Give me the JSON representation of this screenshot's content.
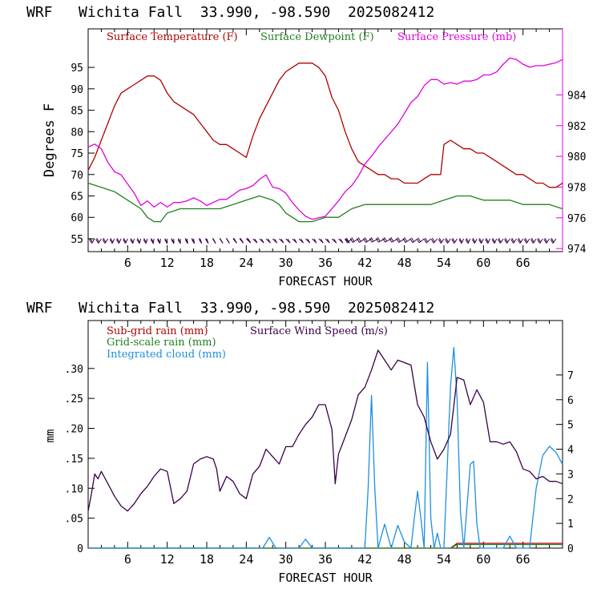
{
  "colors": {
    "temperature": "#b00000",
    "dewpoint": "#208020",
    "pressure": "#e000e0",
    "subgrid_rain": "#b00000",
    "grid_rain": "#208020",
    "cloud": "#1e8fe0",
    "wind": "#3a0048",
    "barbs": "#3a0048",
    "axis": "#000000"
  },
  "chart_data": [
    {
      "type": "line",
      "title": "WRF   Wichita Fall  33.990, -98.590  2025082412",
      "xlabel": "FORECAST HOUR",
      "ylabel": "Degrees F",
      "xlim": [
        0,
        72
      ],
      "ylim": [
        52,
        104
      ],
      "y2lim": [
        973.8,
        988.3
      ],
      "xticks": [
        6,
        12,
        18,
        24,
        30,
        36,
        42,
        48,
        54,
        60,
        66
      ],
      "yticks": [
        55,
        60,
        65,
        70,
        75,
        80,
        85,
        90,
        95
      ],
      "y2ticks": [
        974,
        976,
        978,
        980,
        982,
        984
      ],
      "legend": [
        "Surface Temperature (F)",
        "Surface Dewpoint (F)",
        "Surface Pressure (mb)"
      ],
      "series": [
        {
          "name": "Surface Temperature (F)",
          "axis": "left",
          "x": [
            0,
            1,
            2,
            3,
            4,
            5,
            6,
            7,
            8,
            9,
            10,
            11,
            12,
            13,
            14,
            15,
            16,
            17,
            18,
            19,
            20,
            21,
            22,
            23,
            24,
            25,
            26,
            27,
            28,
            29,
            30,
            31,
            32,
            33,
            34,
            35,
            36,
            37,
            38,
            39,
            40,
            41,
            42,
            43,
            44,
            45,
            46,
            47,
            48,
            49,
            50,
            51,
            52,
            53,
            53.5,
            54,
            55,
            56,
            57,
            58,
            59,
            60,
            61,
            62,
            63,
            64,
            65,
            66,
            67,
            68,
            69,
            70,
            71,
            72
          ],
          "y": [
            71,
            74,
            78,
            82,
            86,
            89,
            90,
            91,
            92,
            93,
            93,
            92,
            89,
            87,
            86,
            85,
            84,
            82,
            80,
            78,
            77,
            77,
            76,
            75,
            74,
            79,
            83,
            86,
            89,
            92,
            94,
            95,
            96,
            96,
            96,
            95,
            93,
            88,
            85,
            80,
            76,
            73,
            72,
            71,
            70,
            70,
            69,
            69,
            68,
            68,
            68,
            69,
            70,
            70,
            70,
            77,
            78,
            77,
            76,
            76,
            75,
            75,
            74,
            73,
            72,
            71,
            70,
            70,
            69,
            68,
            68,
            67,
            67,
            68
          ]
        },
        {
          "name": "Surface Dewpoint (F)",
          "axis": "left",
          "x": [
            0,
            2,
            4,
            6,
            8,
            9,
            10,
            11,
            12,
            14,
            16,
            18,
            20,
            22,
            24,
            26,
            28,
            29,
            30,
            32,
            34,
            36,
            38,
            40,
            42,
            44,
            46,
            48,
            50,
            52,
            54,
            56,
            58,
            60,
            62,
            64,
            66,
            68,
            70,
            72
          ],
          "y": [
            68,
            67,
            66,
            64,
            62,
            60,
            59,
            59,
            61,
            62,
            62,
            62,
            62,
            63,
            64,
            65,
            64,
            63,
            61,
            59,
            59,
            60,
            60,
            62,
            63,
            63,
            63,
            63,
            63,
            63,
            64,
            65,
            65,
            64,
            64,
            64,
            63,
            63,
            63,
            62
          ]
        },
        {
          "name": "Surface Pressure (mb)",
          "axis": "right",
          "x": [
            0,
            1,
            2,
            3,
            4,
            5,
            6,
            7,
            8,
            9,
            10,
            11,
            12,
            13,
            14,
            15,
            16,
            17,
            18,
            19,
            20,
            21,
            22,
            23,
            24,
            25,
            26,
            27,
            28,
            29,
            30,
            31,
            32,
            33,
            34,
            35,
            36,
            37,
            38,
            39,
            40,
            41,
            42,
            43,
            44,
            45,
            46,
            47,
            48,
            49,
            50,
            51,
            52,
            53,
            54,
            55,
            56,
            57,
            58,
            59,
            60,
            61,
            62,
            63,
            64,
            65,
            66,
            67,
            68,
            69,
            70,
            71,
            72
          ],
          "y": [
            980.6,
            980.8,
            980.5,
            979.6,
            979.0,
            978.8,
            978.2,
            977.6,
            976.8,
            977.1,
            976.7,
            977.0,
            976.7,
            977.0,
            977.0,
            977.1,
            977.3,
            977.1,
            976.8,
            977.0,
            977.2,
            977.2,
            977.5,
            977.8,
            977.9,
            978.1,
            978.5,
            978.8,
            978.0,
            977.9,
            977.6,
            977.0,
            976.5,
            976.1,
            975.9,
            976.0,
            976.1,
            976.6,
            977.1,
            977.7,
            978.1,
            978.7,
            979.5,
            980.0,
            980.6,
            981.1,
            981.6,
            982.1,
            982.8,
            983.5,
            983.9,
            984.6,
            985.0,
            985.0,
            984.7,
            984.8,
            984.7,
            984.9,
            984.9,
            985.0,
            985.3,
            985.3,
            985.5,
            986.0,
            986.4,
            986.3,
            986.0,
            985.8,
            985.9,
            985.9,
            986.0,
            986.1,
            986.3
          ]
        }
      ],
      "wind_barbs": {
        "y": 55,
        "x": [
          1,
          2,
          3,
          4,
          5,
          6,
          7,
          8,
          9,
          10,
          11,
          12,
          13,
          14,
          15,
          16,
          17,
          18,
          19,
          20,
          21,
          22,
          23,
          24,
          25,
          26,
          27,
          28,
          29,
          30,
          31,
          32,
          33,
          34,
          35,
          36,
          37,
          38,
          39,
          40,
          41,
          42,
          43,
          44,
          45,
          46,
          47,
          48,
          49,
          50,
          51,
          52,
          53,
          54,
          55,
          56,
          57,
          58,
          59,
          60,
          61,
          62,
          63,
          64,
          65,
          66,
          67,
          68,
          69,
          70,
          71
        ],
        "direction_deg": [
          200,
          200,
          200,
          195,
          195,
          195,
          190,
          190,
          190,
          185,
          185,
          180,
          180,
          180,
          175,
          175,
          170,
          170,
          165,
          160,
          160,
          155,
          155,
          150,
          150,
          150,
          150,
          150,
          150,
          150,
          150,
          150,
          150,
          150,
          150,
          150,
          150,
          150,
          150,
          210,
          220,
          220,
          220,
          225,
          225,
          225,
          225,
          220,
          220,
          215,
          215,
          210,
          205,
          200,
          200,
          200,
          195,
          195,
          195,
          195,
          195,
          195,
          200,
          200,
          200,
          200,
          200,
          200,
          200,
          200,
          200
        ],
        "barb_count": [
          2,
          2,
          2,
          2,
          2,
          2,
          2,
          2,
          2,
          2,
          2,
          2,
          2,
          2,
          2,
          2,
          2,
          2,
          2,
          2,
          2,
          2,
          2,
          2,
          1,
          1,
          1,
          1,
          1,
          1,
          1,
          1,
          1,
          1,
          1,
          1,
          1,
          1,
          1,
          2,
          2,
          2,
          2,
          2,
          2,
          2,
          2,
          2,
          2,
          2,
          2,
          2,
          2,
          2,
          2,
          2,
          2,
          2,
          2,
          2,
          2,
          2,
          2,
          2,
          2,
          2,
          2,
          2,
          2,
          2,
          2
        ]
      }
    },
    {
      "type": "line",
      "title": "WRF   Wichita Fall  33.990, -98.590  2025082412",
      "xlabel": "FORECAST HOUR",
      "ylabel": "mm",
      "xlim": [
        0,
        72
      ],
      "ylim": [
        0,
        0.38
      ],
      "y2lim": [
        0,
        9.2
      ],
      "xticks": [
        6,
        12,
        18,
        24,
        30,
        36,
        42,
        48,
        54,
        60,
        66
      ],
      "yticks": [
        0,
        0.05,
        0.1,
        0.15,
        0.2,
        0.25,
        0.3
      ],
      "ytick_labels": [
        "0",
        ".05",
        ".10",
        ".15",
        ".20",
        ".25",
        ".30"
      ],
      "y2ticks": [
        0,
        1,
        2,
        3,
        4,
        5,
        6,
        7
      ],
      "legend": [
        "Sub-grid rain (mm)",
        "Grid-scale rain (mm)",
        "Integrated cloud (mm)",
        "Surface Wind Speed (m/s)"
      ],
      "series": [
        {
          "name": "Sub-grid rain (mm)",
          "axis": "left",
          "x": [
            0,
            55,
            56,
            72
          ],
          "y": [
            0,
            0,
            0.008,
            0.008
          ]
        },
        {
          "name": "Grid-scale rain (mm)",
          "axis": "left",
          "x": [
            0,
            55,
            56,
            72
          ],
          "y": [
            0,
            0,
            0.006,
            0.006
          ]
        },
        {
          "name": "Integrated cloud (mm)",
          "axis": "left",
          "x": [
            0,
            26.5,
            27.5,
            28.5,
            32,
            33,
            34,
            42,
            42.5,
            43,
            43.5,
            44,
            45,
            45.5,
            46,
            47,
            48,
            49,
            49.5,
            50,
            50.5,
            51,
            51.5,
            52,
            52.5,
            53,
            53.5,
            54,
            55,
            55.5,
            56,
            56.5,
            57,
            58,
            58.5,
            59,
            59.5,
            60,
            63,
            64,
            65,
            67,
            67.5,
            68,
            69,
            70,
            71,
            72
          ],
          "y": [
            0,
            0,
            0.018,
            0,
            0,
            0.015,
            0,
            0,
            0.1,
            0.255,
            0.1,
            0,
            0.04,
            0.02,
            0,
            0.038,
            0.01,
            0,
            0.05,
            0.095,
            0.05,
            0,
            0.31,
            0.05,
            0,
            0.025,
            0,
            0,
            0.27,
            0.335,
            0.25,
            0.06,
            0,
            0.14,
            0.145,
            0.04,
            0,
            0,
            0,
            0.02,
            0,
            0,
            0.05,
            0.1,
            0.155,
            0.17,
            0.16,
            0.14
          ]
        },
        {
          "name": "Surface Wind Speed (m/s)",
          "axis": "right",
          "x": [
            0,
            0.5,
            1,
            1.5,
            2,
            3,
            4,
            5,
            6,
            7,
            8,
            9,
            10,
            11,
            12,
            13,
            14,
            15,
            16,
            17,
            18,
            19,
            19.5,
            20,
            20.5,
            21,
            22,
            23,
            24,
            25,
            26,
            27,
            28,
            29,
            30,
            31,
            32,
            33,
            34,
            35,
            36,
            37,
            37.5,
            38,
            39,
            40,
            41,
            42,
            43,
            44,
            45,
            46,
            47,
            48,
            49,
            50,
            51,
            52,
            53,
            54,
            55,
            56,
            57,
            58,
            59,
            60,
            61,
            62,
            63,
            64,
            65,
            66,
            67,
            68,
            69,
            70,
            71,
            72
          ],
          "y": [
            1.5,
            2.2,
            3.0,
            2.8,
            3.1,
            2.6,
            2.1,
            1.7,
            1.5,
            1.8,
            2.2,
            2.5,
            2.9,
            3.2,
            3.1,
            1.8,
            2.0,
            2.3,
            3.4,
            3.6,
            3.7,
            3.6,
            3.2,
            2.3,
            2.6,
            2.9,
            2.7,
            2.2,
            2.0,
            3.0,
            3.3,
            4.0,
            3.7,
            3.4,
            4.1,
            4.1,
            4.6,
            5.0,
            5.3,
            5.8,
            5.8,
            4.8,
            2.6,
            3.8,
            4.5,
            5.2,
            6.2,
            6.5,
            7.2,
            8.0,
            7.6,
            7.2,
            7.6,
            7.5,
            7.4,
            5.8,
            5.3,
            4.3,
            3.6,
            4.0,
            4.6,
            6.9,
            6.8,
            5.8,
            6.4,
            5.9,
            4.3,
            4.3,
            4.2,
            4.3,
            3.9,
            3.2,
            3.1,
            2.8,
            2.9,
            2.7,
            2.7,
            2.6
          ]
        }
      ]
    }
  ]
}
